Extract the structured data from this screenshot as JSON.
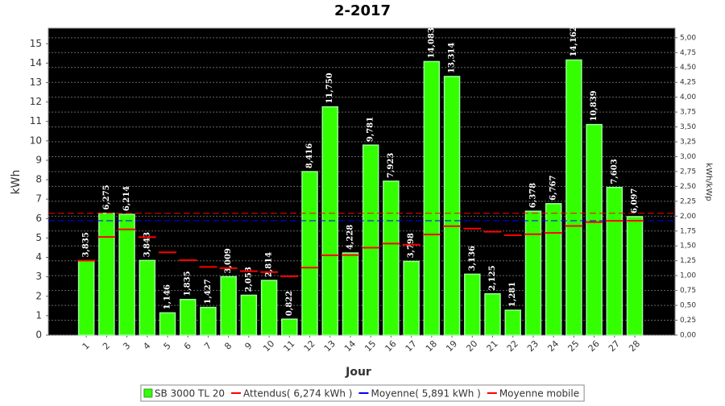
{
  "chart_data": {
    "type": "bar",
    "title": "2-2017",
    "x_label": "Jour",
    "y_label": "kWh",
    "y2_label": "kWh/kWp",
    "categories": [
      "1",
      "2",
      "3",
      "4",
      "5",
      "6",
      "7",
      "8",
      "9",
      "10",
      "11",
      "12",
      "13",
      "14",
      "15",
      "16",
      "17",
      "18",
      "19",
      "20",
      "21",
      "22",
      "23",
      "24",
      "25",
      "26",
      "27",
      "28"
    ],
    "series": [
      {
        "name": "SB 3000 TL 20",
        "type": "bar",
        "color": "#33ff00",
        "values": [
          3.835,
          6.275,
          6.214,
          3.843,
          1.146,
          1.835,
          1.427,
          3.009,
          2.053,
          2.814,
          0.822,
          8.416,
          11.75,
          4.228,
          9.781,
          7.923,
          3.798,
          14.083,
          13.314,
          3.136,
          2.125,
          1.281,
          6.378,
          6.767,
          14.162,
          10.839,
          7.603,
          6.097
        ],
        "value_labels": [
          "3,835",
          "6,275",
          "6,214",
          "3,843",
          "1,146",
          "1,835",
          "1,427",
          "3,009",
          "2,053",
          "2,814",
          "0,822",
          "8,416",
          "11,750",
          "4,228",
          "9,781",
          "7,923",
          "3,798",
          "14,083",
          "13,314",
          "3,136",
          "2,125",
          "1,281",
          "6,378",
          "6,767",
          "14,162",
          "10,839",
          "7,603",
          "6,097"
        ]
      },
      {
        "name": "Attendus( 6,274 kWh )",
        "type": "hline",
        "color": "#ff0000",
        "value": 6.274
      },
      {
        "name": "Moyenne( 5,891 kWh )",
        "type": "hline",
        "color": "#0000ff",
        "value": 5.891
      },
      {
        "name": "Moyenne mobile",
        "type": "steps",
        "color": "#ff0000",
        "values": [
          3.835,
          5.055,
          5.441,
          5.042,
          4.263,
          3.858,
          3.511,
          3.448,
          3.293,
          3.245,
          3.025,
          3.474,
          4.111,
          4.119,
          4.497,
          4.711,
          4.657,
          5.181,
          5.609,
          5.485,
          5.325,
          5.141,
          5.195,
          5.261,
          5.617,
          5.818,
          5.884,
          5.891
        ]
      }
    ],
    "ylim": [
      0,
      15.8
    ],
    "yticks": [
      0,
      1,
      2,
      3,
      4,
      5,
      6,
      7,
      8,
      9,
      10,
      11,
      12,
      13,
      14,
      15
    ],
    "y2lim": [
      0,
      5.16
    ],
    "y2ticks": [
      {
        "value": 0,
        "label": "0,00"
      },
      {
        "value": 0.25,
        "label": "0,25"
      },
      {
        "value": 0.5,
        "label": "0,50"
      },
      {
        "value": 0.75,
        "label": "0,75"
      },
      {
        "value": 1,
        "label": "1,00"
      },
      {
        "value": 1.25,
        "label": "1,25"
      },
      {
        "value": 1.5,
        "label": "1,50"
      },
      {
        "value": 1.75,
        "label": "1,75"
      },
      {
        "value": 2,
        "label": "2,00"
      },
      {
        "value": 2.25,
        "label": "2,25"
      },
      {
        "value": 2.5,
        "label": "2,50"
      },
      {
        "value": 2.75,
        "label": "2,75"
      },
      {
        "value": 3,
        "label": "3,00"
      },
      {
        "value": 3.25,
        "label": "3,25"
      },
      {
        "value": 3.5,
        "label": "3,50"
      },
      {
        "value": 3.75,
        "label": "3,75"
      },
      {
        "value": 4,
        "label": "4,00"
      },
      {
        "value": 4.25,
        "label": "4,25"
      },
      {
        "value": 4.5,
        "label": "4,50"
      },
      {
        "value": 4.75,
        "label": "4,75"
      },
      {
        "value": 5,
        "label": "5,00"
      }
    ],
    "grid": true,
    "background": "#000000"
  }
}
